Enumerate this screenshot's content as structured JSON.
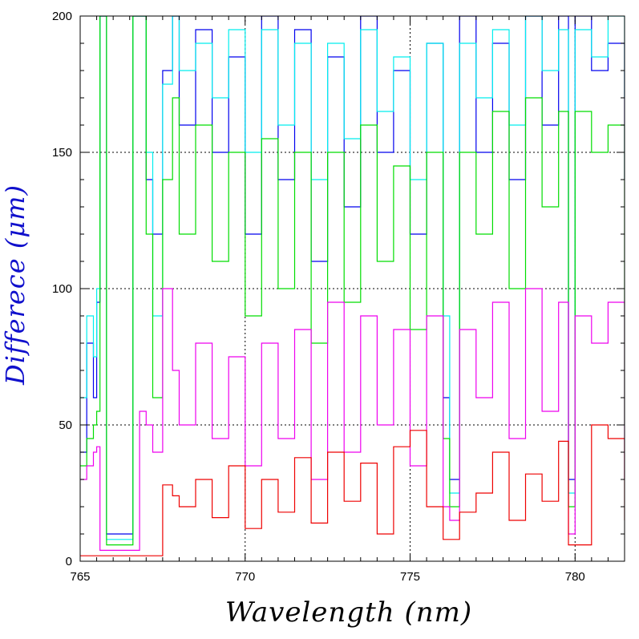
{
  "chart_data": {
    "type": "line",
    "title": "",
    "xlabel": "Wavelength (nm)",
    "ylabel": "Difference (μm)",
    "ylabel_display": "Differece (μm)",
    "xlim": [
      765,
      781.5
    ],
    "ylim": [
      0,
      200
    ],
    "xticks": [
      765,
      770,
      775,
      780
    ],
    "yticks": [
      0,
      50,
      100,
      150,
      200
    ],
    "grid": "dotted",
    "legend": "none",
    "series": [
      {
        "color": "#0000ee",
        "x": [
          765.0,
          765.2,
          765.4,
          765.5,
          765.6,
          765.8,
          766.0,
          766.3,
          766.6,
          766.8,
          767.0,
          767.2,
          767.5,
          767.8,
          768.0,
          768.5,
          769.0,
          769.5,
          770.0,
          770.5,
          771.0,
          771.5,
          772.0,
          772.5,
          773.0,
          773.5,
          774.0,
          774.5,
          775.0,
          775.5,
          776.0,
          776.2,
          776.5,
          777.0,
          777.5,
          778.0,
          778.5,
          779.0,
          779.5,
          779.8,
          780.0,
          780.5,
          781.0,
          781.5
        ],
        "y": [
          40,
          80,
          60,
          95,
          200,
          10,
          10,
          10,
          200,
          200,
          140,
          120,
          180,
          200,
          160,
          195,
          150,
          185,
          120,
          200,
          140,
          195,
          110,
          185,
          130,
          200,
          150,
          180,
          120,
          190,
          60,
          30,
          200,
          150,
          190,
          140,
          200,
          160,
          200,
          30,
          200,
          180,
          190,
          140
        ]
      },
      {
        "color": "#00eeee",
        "x": [
          765.0,
          765.2,
          765.4,
          765.5,
          765.6,
          765.8,
          766.0,
          766.3,
          766.6,
          766.8,
          767.0,
          767.2,
          767.5,
          767.8,
          768.0,
          768.5,
          769.0,
          769.5,
          770.0,
          770.5,
          771.0,
          771.5,
          772.0,
          772.5,
          773.0,
          773.5,
          774.0,
          774.5,
          775.0,
          775.5,
          776.0,
          776.2,
          776.5,
          777.0,
          777.5,
          778.0,
          778.5,
          779.0,
          779.5,
          779.8,
          780.0,
          780.5,
          781.0,
          781.5
        ],
        "y": [
          60,
          90,
          75,
          100,
          200,
          8,
          8,
          8,
          200,
          200,
          150,
          90,
          175,
          200,
          180,
          190,
          170,
          195,
          150,
          195,
          160,
          190,
          140,
          190,
          155,
          195,
          165,
          185,
          140,
          190,
          90,
          25,
          190,
          170,
          195,
          160,
          200,
          180,
          195,
          25,
          195,
          185,
          200,
          170
        ]
      },
      {
        "color": "#00dd00",
        "x": [
          765.0,
          765.2,
          765.4,
          765.5,
          765.6,
          765.8,
          766.0,
          766.3,
          766.6,
          766.8,
          767.0,
          767.2,
          767.5,
          767.8,
          768.0,
          768.5,
          769.0,
          769.5,
          770.0,
          770.5,
          771.0,
          771.5,
          772.0,
          772.5,
          773.0,
          773.5,
          774.0,
          774.5,
          775.0,
          775.5,
          776.0,
          776.2,
          776.5,
          777.0,
          777.5,
          778.0,
          778.5,
          779.0,
          779.5,
          779.8,
          780.0,
          780.5,
          781.0,
          781.5
        ],
        "y": [
          35,
          45,
          50,
          55,
          200,
          6,
          6,
          6,
          200,
          200,
          120,
          60,
          140,
          170,
          120,
          160,
          110,
          150,
          90,
          155,
          100,
          150,
          80,
          150,
          95,
          160,
          110,
          145,
          85,
          150,
          45,
          20,
          150,
          120,
          165,
          100,
          170,
          130,
          165,
          20,
          165,
          150,
          160,
          50
        ]
      },
      {
        "color": "#ee00ee",
        "x": [
          765.0,
          765.2,
          765.4,
          765.5,
          765.6,
          765.8,
          766.0,
          766.3,
          766.6,
          766.8,
          767.0,
          767.2,
          767.5,
          767.8,
          768.0,
          768.5,
          769.0,
          769.5,
          770.0,
          770.5,
          771.0,
          771.5,
          772.0,
          772.5,
          773.0,
          773.5,
          774.0,
          774.5,
          775.0,
          775.5,
          776.0,
          776.2,
          776.5,
          777.0,
          777.5,
          778.0,
          778.5,
          779.0,
          779.5,
          779.8,
          780.0,
          780.5,
          781.0,
          781.5
        ],
        "y": [
          30,
          35,
          40,
          42,
          4,
          4,
          4,
          4,
          4,
          55,
          50,
          40,
          100,
          70,
          50,
          80,
          45,
          75,
          35,
          80,
          45,
          85,
          30,
          95,
          40,
          90,
          50,
          85,
          35,
          90,
          20,
          15,
          85,
          60,
          95,
          45,
          100,
          55,
          95,
          10,
          90,
          80,
          95,
          30
        ]
      },
      {
        "color": "#ee0000",
        "x": [
          765.0,
          765.2,
          765.4,
          765.5,
          765.6,
          765.8,
          766.0,
          766.3,
          766.6,
          766.8,
          767.0,
          767.2,
          767.5,
          767.8,
          768.0,
          768.5,
          769.0,
          769.5,
          770.0,
          770.5,
          771.0,
          771.5,
          772.0,
          772.5,
          773.0,
          773.5,
          774.0,
          774.5,
          775.0,
          775.5,
          776.0,
          776.2,
          776.5,
          777.0,
          777.5,
          778.0,
          778.5,
          779.0,
          779.5,
          779.8,
          780.0,
          780.5,
          781.0,
          781.5
        ],
        "y": [
          2,
          2,
          2,
          2,
          2,
          2,
          2,
          2,
          2,
          2,
          2,
          2,
          28,
          24,
          20,
          30,
          16,
          35,
          12,
          30,
          18,
          38,
          14,
          40,
          22,
          36,
          10,
          42,
          48,
          20,
          8,
          8,
          18,
          25,
          40,
          15,
          32,
          22,
          44,
          6,
          6,
          50,
          45,
          15
        ]
      }
    ]
  }
}
